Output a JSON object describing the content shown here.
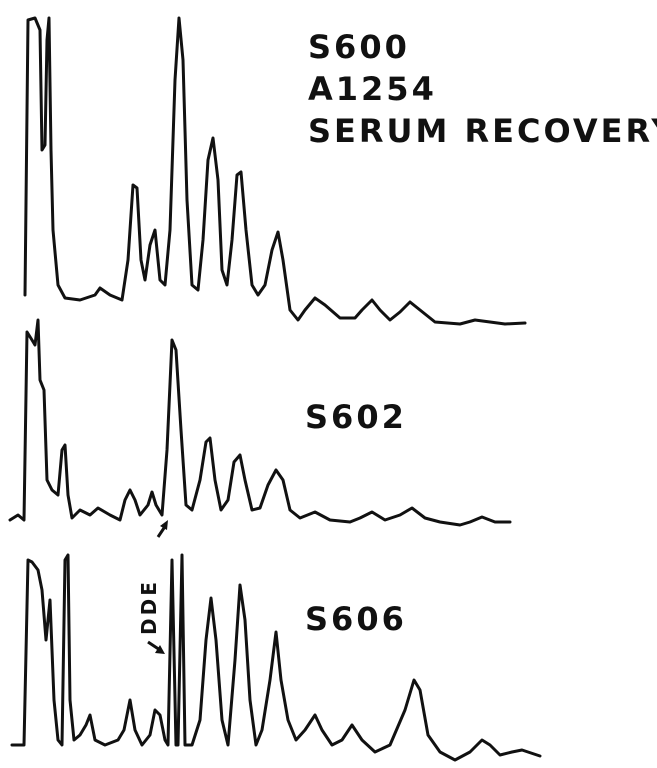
{
  "labels": {
    "top": [
      "S600",
      "A1254",
      "SERUM RECOVERY"
    ],
    "middle": "S602",
    "bottom": "S606",
    "peak": "DDE"
  }
}
